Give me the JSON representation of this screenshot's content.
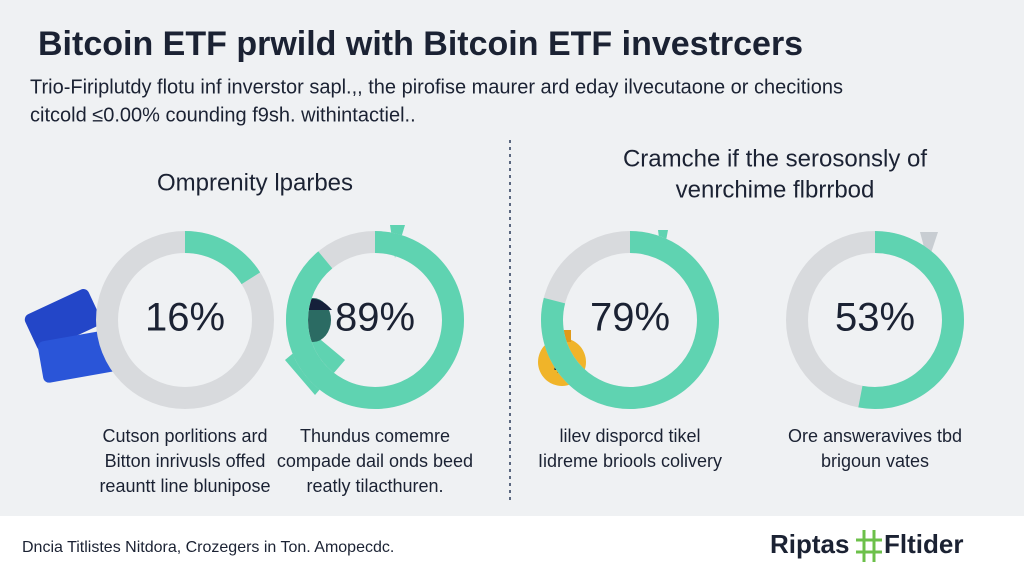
{
  "header": {
    "title": "Bitcoin ETF prwild with Bitcoin ETF investrcers",
    "subtitle": [
      "Trio-Firiplutdy flotu inf inverstor sapl.,, the pirofise maurer ard eday ilvecutaone or checitions",
      "citcold ≤0.00% counding f9sh. withintactiel.."
    ]
  },
  "sections": [
    {
      "heading": [
        "Omprenity lparbes"
      ]
    },
    {
      "heading": [
        "Cramche if the serosonsly of",
        "venrchime flbrrbod"
      ]
    }
  ],
  "donuts": [
    {
      "value": 16,
      "label": "16%",
      "color": "#5fd3b1",
      "caption": [
        "Cutson porlitions ard",
        "Bitton inrivusls offed",
        "reauntt line blunipose"
      ]
    },
    {
      "value": 89,
      "label": "89%",
      "color": "#5fd3b1",
      "caption": [
        "Thundus comemre",
        "compade dail onds beed",
        "reatly tilacthuren."
      ]
    },
    {
      "value": 79,
      "label": "79%",
      "color": "#5fd3b1",
      "caption": [
        "lilev disporcd tikel",
        "Iidreme briools colivery"
      ]
    },
    {
      "value": 53,
      "label": "53%",
      "color": "#5fd3b1",
      "caption": [
        "Ore answeravives tbd",
        "brigoun vates"
      ]
    }
  ],
  "footer": {
    "note": "Dncia Titlistes Nitdora, Crozegers in Ton. Amopecdc.",
    "logo_left": "Riptas",
    "logo_right": "Fltider"
  }
}
